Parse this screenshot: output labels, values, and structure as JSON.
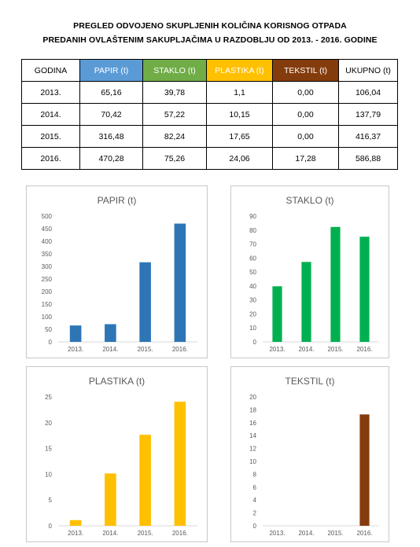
{
  "header": {
    "line1": "PREGLED ODVOJENO SKUPLJENIH KOLIČINA KORISNOG OTPADA",
    "line2": "PREDANIH OVLAŠTENIM SAKUPLJAČIMA U RAZDOBLJU OD 2013. - 2016. GODINE"
  },
  "table": {
    "columns": [
      {
        "label": "GODINA",
        "bg": "#ffffff",
        "color": "#000000"
      },
      {
        "label": "PAPIR (t)",
        "bg": "#5b9bd5",
        "color": "#ffffff"
      },
      {
        "label": "STAKLO (t)",
        "bg": "#70ad47",
        "color": "#ffffff"
      },
      {
        "label": "PLASTIKA (t)",
        "bg": "#ffc000",
        "color": "#ffffff"
      },
      {
        "label": "TEKSTIL (t)",
        "bg": "#843c0c",
        "color": "#ffffff"
      },
      {
        "label": "UKUPNO (t)",
        "bg": "#ffffff",
        "color": "#000000"
      }
    ],
    "rows": [
      [
        "2013.",
        "65,16",
        "39,78",
        "1,1",
        "0,00",
        "106,04"
      ],
      [
        "2014.",
        "70,42",
        "57,22",
        "10,15",
        "0,00",
        "137,79"
      ],
      [
        "2015.",
        "316,48",
        "82,24",
        "17,65",
        "0,00",
        "416,37"
      ],
      [
        "2016.",
        "470,28",
        "75,26",
        "24,06",
        "17,28",
        "586,88"
      ]
    ]
  },
  "chart_data": [
    {
      "type": "bar",
      "title": "PAPIR (t)",
      "categories": [
        "2013.",
        "2014.",
        "2015.",
        "2016."
      ],
      "values": [
        65.16,
        70.42,
        316.48,
        470.28
      ],
      "ylim": [
        0,
        500
      ],
      "yticks": [
        0,
        50,
        100,
        150,
        200,
        250,
        300,
        350,
        400,
        450,
        500
      ],
      "color": "#2e75b6",
      "grid": false
    },
    {
      "type": "bar",
      "title": "STAKLO (t)",
      "categories": [
        "2013.",
        "2014.",
        "2015.",
        "2016."
      ],
      "values": [
        39.78,
        57.22,
        82.24,
        75.26
      ],
      "ylim": [
        0,
        90
      ],
      "yticks": [
        0,
        10,
        20,
        30,
        40,
        50,
        60,
        70,
        80,
        90
      ],
      "color": "#00b050",
      "grid": false
    },
    {
      "type": "bar",
      "title": "PLASTIKA (t)",
      "categories": [
        "2013.",
        "2014.",
        "2015.",
        "2016."
      ],
      "values": [
        1.1,
        10.15,
        17.65,
        24.06
      ],
      "ylim": [
        0,
        25
      ],
      "yticks": [
        0,
        5,
        10,
        15,
        20,
        25
      ],
      "color": "#ffc000",
      "grid": false
    },
    {
      "type": "bar",
      "title": "TEKSTIL (t)",
      "categories": [
        "2013.",
        "2014.",
        "2015.",
        "2016."
      ],
      "values": [
        0,
        0,
        0,
        17.28
      ],
      "ylim": [
        0,
        20
      ],
      "yticks": [
        0,
        2,
        4,
        6,
        8,
        10,
        12,
        14,
        16,
        18,
        20
      ],
      "color": "#843c0c",
      "grid": false
    }
  ]
}
